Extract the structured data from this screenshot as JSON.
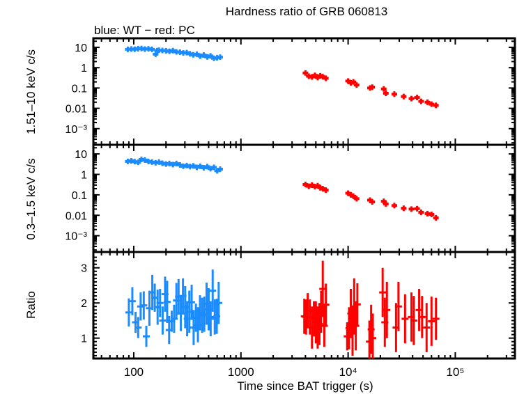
{
  "chart_data": [
    {
      "type": "scatter",
      "panel": "hard",
      "title": "Hardness ratio of GRB 060813",
      "subtitle": "blue: WT − red: PC",
      "xlabel": "Time since BAT trigger (s)",
      "ylabel": "1.51–10 keV c/s",
      "xscale": "log",
      "yscale": "log",
      "xlim": [
        42,
        360000
      ],
      "ylim": [
        0.00016,
        28
      ],
      "ytick_labels": [
        "10",
        "1",
        "0.1",
        "0.01",
        "10⁻³"
      ],
      "ytick_values": [
        10,
        1,
        0.1,
        0.01,
        0.001
      ],
      "series": [
        {
          "name": "WT",
          "color": "#1a8cff",
          "x": [
            88,
            95,
            102,
            110,
            118,
            127,
            137,
            148,
            160,
            165,
            172,
            185,
            200,
            215,
            232,
            250,
            270,
            290,
            312,
            335,
            360,
            388,
            418,
            450,
            485,
            520,
            560,
            600,
            640
          ],
          "y": [
            8.0,
            8.3,
            8.1,
            8.6,
            8.8,
            8.2,
            8.5,
            8.0,
            4.6,
            6.9,
            7.2,
            7.0,
            6.8,
            6.4,
            6.9,
            6.0,
            5.8,
            5.3,
            5.5,
            4.8,
            4.3,
            4.6,
            3.7,
            4.2,
            3.4,
            3.8,
            2.9,
            3.1,
            3.3
          ]
        },
        {
          "name": "PC",
          "color": "#ff0000",
          "x": [
            4000,
            4300,
            4600,
            4900,
            5200,
            5500,
            5800,
            6200,
            10000,
            10600,
            11200,
            12000,
            16000,
            16800,
            21500,
            22500,
            27000,
            33000,
            39000,
            44000,
            48000,
            55000,
            60000,
            66000
          ],
          "y": [
            0.55,
            0.38,
            0.35,
            0.42,
            0.33,
            0.4,
            0.36,
            0.3,
            0.22,
            0.18,
            0.2,
            0.14,
            0.1,
            0.11,
            0.09,
            0.055,
            0.05,
            0.038,
            0.03,
            0.034,
            0.022,
            0.02,
            0.016,
            0.014
          ]
        }
      ]
    },
    {
      "type": "scatter",
      "panel": "soft",
      "xlabel": "Time since BAT trigger (s)",
      "ylabel": "0.3–1.5 keV c/s",
      "xscale": "log",
      "yscale": "log",
      "xlim": [
        42,
        360000
      ],
      "ylim": [
        0.00016,
        28
      ],
      "ytick_labels": [
        "10",
        "1",
        "0.1",
        "0.01",
        "10⁻³"
      ],
      "ytick_values": [
        10,
        1,
        0.1,
        0.01,
        0.001
      ],
      "series": [
        {
          "name": "WT",
          "color": "#1a8cff",
          "x": [
            88,
            95,
            102,
            110,
            118,
            127,
            137,
            148,
            160,
            172,
            185,
            200,
            215,
            232,
            250,
            270,
            290,
            312,
            335,
            360,
            388,
            418,
            450,
            485,
            520,
            560,
            600,
            640
          ],
          "y": [
            4.3,
            4.6,
            4.2,
            3.9,
            5.4,
            5.0,
            4.3,
            4.0,
            3.7,
            4.0,
            3.5,
            3.2,
            3.4,
            3.0,
            3.4,
            2.9,
            2.5,
            2.7,
            2.4,
            2.6,
            2.2,
            2.5,
            2.1,
            2.4,
            1.9,
            2.2,
            1.5,
            1.8
          ]
        },
        {
          "name": "PC",
          "color": "#ff0000",
          "x": [
            4000,
            4300,
            4600,
            4900,
            5200,
            5500,
            5800,
            6200,
            10000,
            10600,
            11200,
            12000,
            16000,
            16800,
            21500,
            22500,
            27000,
            33000,
            39000,
            44000,
            48000,
            55000,
            60000,
            66000
          ],
          "y": [
            0.32,
            0.26,
            0.3,
            0.25,
            0.28,
            0.22,
            0.2,
            0.17,
            0.12,
            0.1,
            0.085,
            0.065,
            0.055,
            0.045,
            0.048,
            0.036,
            0.03,
            0.022,
            0.02,
            0.021,
            0.014,
            0.012,
            0.011,
            0.0075
          ]
        }
      ]
    },
    {
      "type": "scatter",
      "panel": "ratio",
      "xlabel": "Time since BAT trigger (s)",
      "ylabel": "Ratio",
      "xscale": "log",
      "yscale": "linear",
      "xlim": [
        42,
        360000
      ],
      "ylim": [
        0.42,
        3.45
      ],
      "ytick_labels": [
        "3",
        "2",
        "1"
      ],
      "ytick_values": [
        3,
        2,
        1
      ],
      "xtick_labels": [
        "100",
        "1000",
        "10⁴",
        "10⁵"
      ],
      "xtick_values": [
        100,
        1000,
        10000,
        100000
      ],
      "series": [
        {
          "name": "WT",
          "color": "#1a8cff",
          "x": [
            90,
            97,
            104,
            110,
            116,
            124,
            131,
            140,
            149,
            157,
            167,
            176,
            186,
            196,
            205,
            214,
            226,
            238,
            250,
            262,
            275,
            288,
            302,
            315,
            330,
            347,
            362,
            380,
            397,
            415,
            435,
            455,
            478,
            500,
            522,
            545,
            570,
            595,
            620
          ],
          "y": [
            1.73,
            2.05,
            1.45,
            1.3,
            1.9,
            1.93,
            1.05,
            1.85,
            2.3,
            2.15,
            1.88,
            2.0,
            1.5,
            2.25,
            2.03,
            1.23,
            1.48,
            1.55,
            2.07,
            2.18,
            1.7,
            2.2,
            1.88,
            1.55,
            1.75,
            2.02,
            1.3,
            1.58,
            1.38,
            1.72,
            1.65,
            1.68,
            1.98,
            1.82,
            1.55,
            2.35,
            1.6,
            1.62,
            2.0
          ],
          "yerr": [
            0.4,
            0.4,
            0.3,
            0.3,
            0.4,
            0.4,
            0.3,
            0.5,
            0.5,
            0.4,
            0.5,
            0.4,
            0.4,
            0.5,
            0.6,
            0.4,
            0.3,
            0.4,
            0.5,
            0.5,
            0.5,
            0.5,
            0.6,
            0.5,
            0.6,
            0.5,
            0.5,
            0.4,
            0.5,
            0.5,
            0.5,
            0.5,
            0.6,
            0.6,
            0.5,
            0.6,
            0.5,
            0.5,
            0.6
          ]
        },
        {
          "name": "PC",
          "color": "#ff0000",
          "x": [
            3900,
            4050,
            4200,
            4400,
            4600,
            4800,
            5000,
            5200,
            5400,
            5600,
            5800,
            6000,
            6200,
            9800,
            10200,
            10600,
            11000,
            11400,
            11800,
            12200,
            15800,
            16400,
            17000,
            21000,
            22000,
            23000,
            28000,
            29500,
            34000,
            39000,
            41000,
            46000,
            49000,
            54000,
            60000,
            66000
          ],
          "y": [
            1.62,
            1.6,
            1.78,
            1.6,
            1.3,
            1.55,
            1.45,
            1.3,
            1.4,
            1.75,
            2.4,
            1.35,
            1.95,
            1.05,
            1.28,
            1.7,
            1.2,
            1.9,
            1.35,
            1.96,
            0.9,
            1.25,
            1.0,
            2.3,
            1.45,
            1.8,
            1.3,
            1.9,
            1.55,
            1.6,
            1.5,
            1.8,
            1.6,
            1.3,
            1.48,
            1.55
          ],
          "yerr": [
            0.5,
            0.5,
            0.5,
            0.5,
            0.6,
            0.5,
            0.6,
            0.6,
            0.6,
            0.6,
            0.8,
            0.6,
            0.6,
            0.4,
            0.6,
            0.7,
            0.7,
            0.8,
            0.7,
            0.6,
            0.6,
            0.7,
            0.7,
            0.7,
            0.7,
            0.8,
            0.7,
            0.7,
            0.7,
            0.7,
            0.7,
            0.6,
            0.6,
            0.7,
            0.7,
            0.6
          ]
        }
      ]
    }
  ]
}
